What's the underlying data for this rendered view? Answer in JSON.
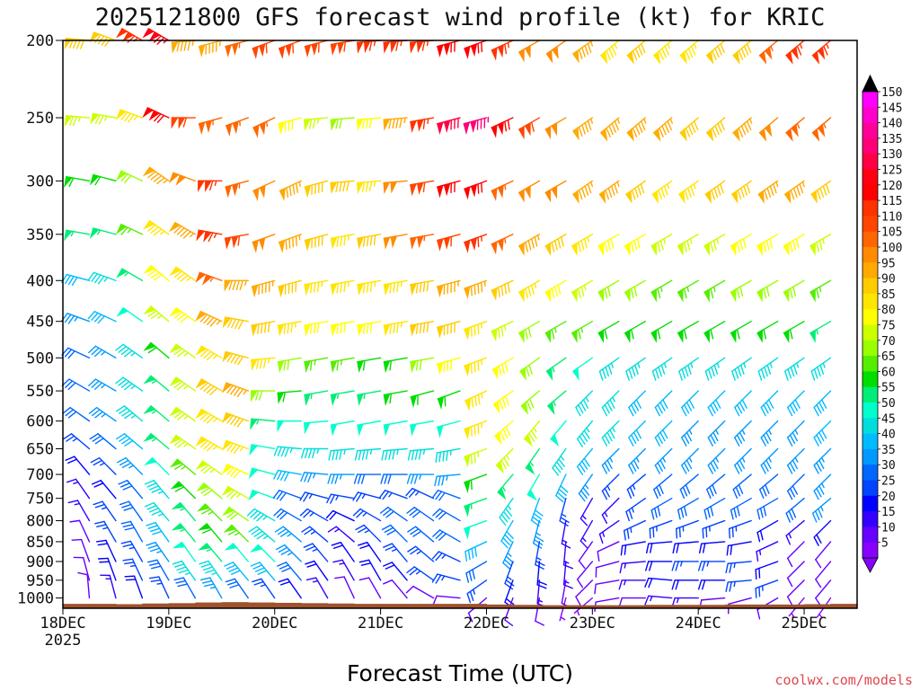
{
  "chart_data": {
    "type": "wind_barb_time_height",
    "title": "2025121800 GFS forecast wind profile (kt) for KRIC",
    "xlabel": "Forecast Time (UTC)",
    "ylabel": "",
    "credit": "coolwx.com/models",
    "x_ticks": [
      {
        "hour": 0,
        "label": "18DEC",
        "sublabel": "2025"
      },
      {
        "hour": 24,
        "label": "19DEC",
        "sublabel": ""
      },
      {
        "hour": 48,
        "label": "20DEC",
        "sublabel": ""
      },
      {
        "hour": 72,
        "label": "21DEC",
        "sublabel": ""
      },
      {
        "hour": 96,
        "label": "22DEC",
        "sublabel": ""
      },
      {
        "hour": 120,
        "label": "23DEC",
        "sublabel": ""
      },
      {
        "hour": 144,
        "label": "24DEC",
        "sublabel": ""
      },
      {
        "hour": 168,
        "label": "25DEC",
        "sublabel": ""
      }
    ],
    "xlim_hours": [
      0,
      180
    ],
    "y_ticks": [
      {
        "p": 200,
        "label": "200"
      },
      {
        "p": 250,
        "label": "250"
      },
      {
        "p": 300,
        "label": "300"
      },
      {
        "p": 350,
        "label": "350"
      },
      {
        "p": 400,
        "label": "400"
      },
      {
        "p": 450,
        "label": "450"
      },
      {
        "p": 500,
        "label": "500"
      },
      {
        "p": 550,
        "label": "550"
      },
      {
        "p": 600,
        "label": "600"
      },
      {
        "p": 650,
        "label": "650"
      },
      {
        "p": 700,
        "label": "700"
      },
      {
        "p": 750,
        "label": "750"
      },
      {
        "p": 800,
        "label": "800"
      },
      {
        "p": 850,
        "label": "850"
      },
      {
        "p": 900,
        "label": "900"
      },
      {
        "p": 950,
        "label": "950"
      },
      {
        "p": 1000,
        "label": "1000"
      }
    ],
    "ylim_hpa": [
      1030,
      200
    ],
    "barb_levels_hpa": [
      200,
      250,
      300,
      350,
      400,
      450,
      500,
      550,
      600,
      650,
      700,
      750,
      800,
      850,
      900,
      950,
      1000
    ],
    "barb_times_hours": [
      0,
      6,
      12,
      18,
      24,
      30,
      36,
      42,
      48,
      54,
      60,
      66,
      72,
      78,
      84,
      90,
      96,
      102,
      108,
      114,
      120,
      126,
      132,
      138,
      144,
      150,
      156,
      162,
      168,
      174,
      180
    ],
    "wind_speed_kt": [
      [
        85,
        90,
        90,
        115,
        125,
        95,
        95,
        105,
        110,
        110,
        110,
        110,
        115,
        115,
        115,
        120,
        120,
        115,
        100,
        100,
        95,
        85,
        90,
        85,
        85,
        90,
        90,
        105,
        115,
        115,
        110
      ],
      [
        80,
        75,
        75,
        85,
        120,
        110,
        105,
        105,
        105,
        80,
        75,
        70,
        80,
        95,
        115,
        130,
        135,
        120,
        110,
        100,
        95,
        95,
        95,
        95,
        90,
        90,
        95,
        100,
        105,
        105,
        100
      ],
      [
        55,
        60,
        60,
        70,
        95,
        100,
        115,
        105,
        100,
        95,
        90,
        90,
        85,
        100,
        110,
        120,
        120,
        105,
        100,
        100,
        95,
        95,
        90,
        85,
        85,
        90,
        90,
        95,
        95,
        90,
        90
      ],
      [
        50,
        55,
        55,
        65,
        85,
        95,
        115,
        110,
        100,
        95,
        90,
        85,
        90,
        100,
        105,
        110,
        115,
        105,
        95,
        90,
        85,
        80,
        80,
        75,
        75,
        75,
        80,
        80,
        80,
        75,
        70
      ],
      [
        40,
        40,
        45,
        55,
        80,
        85,
        105,
        95,
        95,
        90,
        85,
        85,
        85,
        85,
        90,
        95,
        95,
        90,
        85,
        80,
        75,
        70,
        70,
        65,
        65,
        65,
        70,
        70,
        70,
        65,
        65
      ],
      [
        35,
        35,
        40,
        50,
        75,
        80,
        95,
        90,
        90,
        85,
        80,
        80,
        80,
        85,
        90,
        90,
        85,
        75,
        70,
        65,
        65,
        60,
        60,
        60,
        60,
        60,
        60,
        60,
        60,
        55,
        55
      ],
      [
        30,
        30,
        35,
        45,
        60,
        75,
        85,
        90,
        85,
        70,
        65,
        65,
        60,
        60,
        70,
        80,
        85,
        80,
        70,
        55,
        50,
        45,
        45,
        45,
        45,
        45,
        45,
        45,
        45,
        45,
        45
      ],
      [
        30,
        30,
        35,
        45,
        55,
        75,
        90,
        95,
        70,
        60,
        55,
        55,
        55,
        60,
        60,
        60,
        85,
        80,
        70,
        55,
        45,
        45,
        40,
        40,
        40,
        40,
        40,
        40,
        40,
        40,
        40
      ],
      [
        30,
        30,
        35,
        45,
        55,
        75,
        85,
        90,
        55,
        50,
        50,
        50,
        50,
        50,
        50,
        50,
        85,
        80,
        75,
        50,
        45,
        45,
        40,
        40,
        35,
        35,
        35,
        35,
        35,
        40,
        40
      ],
      [
        25,
        25,
        30,
        40,
        55,
        75,
        85,
        85,
        50,
        45,
        45,
        45,
        45,
        45,
        45,
        45,
        75,
        75,
        55,
        45,
        40,
        35,
        35,
        35,
        35,
        35,
        35,
        35,
        35,
        35,
        35
      ],
      [
        15,
        20,
        25,
        35,
        50,
        65,
        75,
        80,
        50,
        40,
        35,
        35,
        30,
        30,
        35,
        35,
        60,
        55,
        50,
        40,
        35,
        25,
        25,
        30,
        30,
        30,
        30,
        30,
        30,
        35,
        35
      ],
      [
        10,
        15,
        20,
        30,
        45,
        60,
        70,
        75,
        50,
        30,
        25,
        25,
        25,
        25,
        25,
        30,
        55,
        45,
        40,
        25,
        15,
        15,
        25,
        30,
        30,
        30,
        30,
        30,
        30,
        35,
        35
      ],
      [
        10,
        15,
        25,
        30,
        45,
        55,
        65,
        70,
        45,
        30,
        25,
        20,
        25,
        30,
        30,
        30,
        50,
        40,
        35,
        15,
        15,
        15,
        25,
        25,
        25,
        25,
        25,
        20,
        15,
        20,
        25
      ],
      [
        10,
        10,
        25,
        30,
        40,
        55,
        60,
        65,
        45,
        35,
        25,
        15,
        25,
        30,
        30,
        30,
        40,
        35,
        25,
        15,
        10,
        10,
        20,
        20,
        20,
        20,
        20,
        15,
        10,
        10,
        15
      ],
      [
        10,
        10,
        20,
        25,
        35,
        50,
        55,
        50,
        50,
        35,
        25,
        20,
        20,
        25,
        25,
        25,
        30,
        25,
        20,
        15,
        10,
        10,
        15,
        20,
        25,
        25,
        25,
        20,
        10,
        10,
        10
      ],
      [
        10,
        10,
        20,
        25,
        30,
        45,
        45,
        40,
        40,
        30,
        20,
        15,
        20,
        20,
        25,
        25,
        25,
        20,
        15,
        10,
        10,
        10,
        15,
        20,
        20,
        20,
        25,
        25,
        10,
        10,
        10
      ],
      [
        5,
        10,
        15,
        20,
        25,
        30,
        35,
        30,
        25,
        20,
        15,
        10,
        10,
        10,
        10,
        10,
        10,
        10,
        10,
        5,
        5,
        10,
        10,
        15,
        15,
        10,
        10,
        10,
        5,
        5,
        5
      ]
    ],
    "wind_dir_deg": [
      [
        270,
        275,
        290,
        300,
        300,
        265,
        255,
        255,
        250,
        250,
        255,
        260,
        265,
        265,
        265,
        255,
        250,
        245,
        240,
        235,
        235,
        230,
        230,
        230,
        230,
        230,
        230,
        230,
        230,
        230,
        230
      ],
      [
        270,
        275,
        280,
        290,
        295,
        270,
        255,
        250,
        245,
        255,
        265,
        265,
        265,
        265,
        260,
        255,
        255,
        245,
        240,
        240,
        235,
        230,
        230,
        230,
        230,
        230,
        230,
        230,
        230,
        230,
        230
      ],
      [
        275,
        280,
        285,
        295,
        305,
        290,
        270,
        255,
        245,
        245,
        255,
        265,
        265,
        265,
        260,
        255,
        250,
        245,
        240,
        240,
        235,
        235,
        235,
        235,
        235,
        235,
        235,
        235,
        235,
        235,
        235
      ],
      [
        275,
        280,
        285,
        295,
        305,
        300,
        280,
        260,
        250,
        250,
        255,
        260,
        260,
        260,
        260,
        255,
        250,
        245,
        240,
        240,
        240,
        240,
        240,
        240,
        240,
        240,
        240,
        240,
        240,
        240,
        240
      ],
      [
        280,
        285,
        290,
        300,
        310,
        305,
        290,
        270,
        255,
        255,
        260,
        260,
        260,
        260,
        260,
        255,
        250,
        245,
        240,
        240,
        240,
        240,
        240,
        240,
        240,
        240,
        240,
        240,
        240,
        240,
        240
      ],
      [
        285,
        290,
        295,
        305,
        310,
        305,
        295,
        280,
        260,
        260,
        260,
        260,
        260,
        260,
        260,
        255,
        250,
        245,
        240,
        240,
        240,
        240,
        240,
        240,
        240,
        240,
        240,
        240,
        240,
        240,
        240
      ],
      [
        290,
        295,
        300,
        305,
        310,
        305,
        300,
        285,
        265,
        260,
        260,
        260,
        260,
        260,
        260,
        255,
        250,
        240,
        235,
        235,
        235,
        235,
        235,
        235,
        235,
        235,
        235,
        235,
        235,
        235,
        235
      ],
      [
        295,
        300,
        300,
        305,
        310,
        305,
        300,
        290,
        270,
        265,
        260,
        260,
        260,
        260,
        255,
        250,
        245,
        235,
        230,
        230,
        225,
        225,
        225,
        225,
        225,
        225,
        225,
        225,
        225,
        225,
        225
      ],
      [
        300,
        305,
        305,
        310,
        310,
        305,
        300,
        290,
        275,
        270,
        265,
        260,
        260,
        260,
        260,
        255,
        250,
        230,
        220,
        220,
        220,
        225,
        225,
        225,
        225,
        225,
        225,
        225,
        225,
        225,
        225
      ],
      [
        305,
        310,
        310,
        310,
        310,
        305,
        300,
        290,
        280,
        275,
        270,
        265,
        265,
        265,
        265,
        260,
        250,
        225,
        215,
        215,
        220,
        225,
        225,
        225,
        225,
        225,
        225,
        225,
        225,
        225,
        225
      ],
      [
        320,
        320,
        315,
        315,
        315,
        310,
        305,
        295,
        285,
        280,
        275,
        270,
        270,
        270,
        270,
        265,
        250,
        220,
        210,
        205,
        215,
        225,
        230,
        230,
        230,
        230,
        230,
        230,
        225,
        225,
        225
      ],
      [
        330,
        325,
        320,
        320,
        320,
        315,
        310,
        300,
        290,
        290,
        285,
        280,
        285,
        290,
        295,
        290,
        250,
        215,
        200,
        195,
        210,
        225,
        235,
        240,
        240,
        240,
        240,
        240,
        230,
        230,
        230
      ],
      [
        340,
        330,
        325,
        325,
        320,
        320,
        315,
        305,
        300,
        300,
        300,
        295,
        300,
        305,
        305,
        300,
        250,
        210,
        195,
        190,
        210,
        235,
        245,
        250,
        250,
        250,
        250,
        240,
        230,
        225,
        225
      ],
      [
        345,
        335,
        330,
        330,
        325,
        320,
        320,
        315,
        310,
        310,
        310,
        310,
        315,
        315,
        310,
        300,
        245,
        205,
        190,
        185,
        215,
        245,
        260,
        265,
        265,
        265,
        260,
        245,
        225,
        220,
        220
      ],
      [
        350,
        340,
        335,
        330,
        325,
        325,
        320,
        320,
        315,
        315,
        320,
        325,
        325,
        320,
        310,
        295,
        240,
        200,
        185,
        185,
        220,
        255,
        265,
        270,
        270,
        270,
        265,
        250,
        225,
        220,
        220
      ],
      [
        355,
        345,
        340,
        335,
        330,
        325,
        325,
        320,
        320,
        320,
        325,
        330,
        330,
        320,
        305,
        285,
        235,
        200,
        185,
        190,
        225,
        260,
        270,
        275,
        270,
        270,
        265,
        250,
        225,
        220,
        220
      ],
      [
        10,
        355,
        345,
        340,
        335,
        330,
        330,
        325,
        325,
        325,
        330,
        335,
        330,
        320,
        300,
        275,
        230,
        200,
        190,
        195,
        230,
        260,
        270,
        275,
        270,
        265,
        255,
        240,
        220,
        215,
        210
      ]
    ],
    "surface_pressure_hpa": [
      1017,
      1017,
      1018,
      1016,
      1015,
      1013,
      1012,
      1013,
      1014,
      1015,
      1016,
      1017,
      1017,
      1017,
      1017,
      1017,
      1019,
      1020,
      1021,
      1021,
      1021,
      1021,
      1020,
      1020,
      1020,
      1019,
      1019,
      1019,
      1018,
      1017,
      1017
    ],
    "colorbar": {
      "min_kt": 5,
      "max_kt": 150,
      "step_kt": 5,
      "labels": [
        "150",
        "145",
        "140",
        "135",
        "130",
        "125",
        "120",
        "115",
        "110",
        "105",
        "100",
        "95",
        "90",
        "85",
        "80",
        "75",
        "70",
        "65",
        "60",
        "55",
        "50",
        "45",
        "40",
        "35",
        "30",
        "25",
        "20",
        "15",
        "10",
        "5"
      ],
      "colors": [
        "#ff00ff",
        "#ff00cc",
        "#ff0099",
        "#ff0077",
        "#ff0044",
        "#ff0011",
        "#ff0000",
        "#ff3300",
        "#ff4500",
        "#ff6600",
        "#ff8c00",
        "#ffaa00",
        "#ffcc00",
        "#ffe600",
        "#ffff00",
        "#ccff00",
        "#99ff00",
        "#55ee00",
        "#00dd00",
        "#00ee77",
        "#00ffcc",
        "#00dddd",
        "#00bbff",
        "#0099ff",
        "#0066ff",
        "#0044ff",
        "#0000ff",
        "#3300ff",
        "#6600ff",
        "#8800ff"
      ]
    },
    "colors": {
      "terrain": "#a0522d",
      "axis": "#000000"
    }
  }
}
